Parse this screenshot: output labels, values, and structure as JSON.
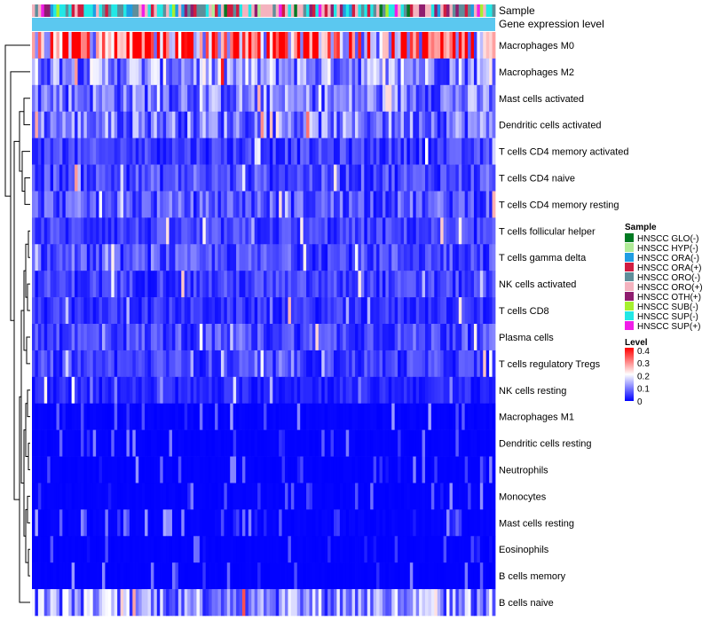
{
  "chart_data": {
    "type": "heatmap",
    "title": "",
    "columns": 152,
    "rows": [
      "Macrophages M0",
      "Macrophages M2",
      "Mast cells activated",
      "Dendritic cells activated",
      "T cells CD4 memory activated",
      "T cells CD4 naive",
      "T cells CD4 memory resting",
      "T cells follicular helper",
      "T cells gamma delta",
      "NK cells activated",
      "T cells CD8",
      "Plasma cells",
      "T cells regulatory  Tregs",
      "NK cells resting",
      "Macrophages M1",
      "Dendritic cells resting",
      "Neutrophils",
      "Monocytes",
      "Mast cells resting",
      "Eosinophils",
      "B cells memory",
      "B cells naive"
    ],
    "row_mean_level": [
      0.3,
      0.12,
      0.1,
      0.1,
      0.05,
      0.06,
      0.07,
      0.05,
      0.06,
      0.05,
      0.04,
      0.06,
      0.05,
      0.03,
      0.02,
      0.015,
      0.012,
      0.015,
      0.02,
      0.01,
      0.01,
      0.12
    ],
    "annotation_tracks": [
      {
        "label": "Sample"
      },
      {
        "label": "Gene expression level",
        "color": "#5bc8f0"
      }
    ],
    "sample_legend": {
      "title": "Sample",
      "items": [
        {
          "label": "HNSCC GLO(-)",
          "color": "#007a22"
        },
        {
          "label": "HNSCC HYP(-)",
          "color": "#b0eb97"
        },
        {
          "label": "HNSCC ORA(-)",
          "color": "#1f9de3"
        },
        {
          "label": "HNSCC ORA(+)",
          "color": "#d01c41"
        },
        {
          "label": "HNSCC ORO(-)",
          "color": "#5e8e9a"
        },
        {
          "label": "HNSCC ORO(+)",
          "color": "#f4b3bf"
        },
        {
          "label": "HNSCC OTH(+)",
          "color": "#8f1d6f"
        },
        {
          "label": "HNSCC SUB(-)",
          "color": "#a6f02f"
        },
        {
          "label": "HNSCC SUP(-)",
          "color": "#22e8e6"
        },
        {
          "label": "HNSCC SUP(+)",
          "color": "#f01de8"
        }
      ]
    },
    "level_legend": {
      "title": "Level",
      "ticks": [
        "0.4",
        "0.3",
        "0.2",
        "0.1",
        "0"
      ],
      "range": [
        0,
        0.42
      ],
      "colors": [
        "#0000ff",
        "#ffffff",
        "#ff0000"
      ]
    }
  }
}
